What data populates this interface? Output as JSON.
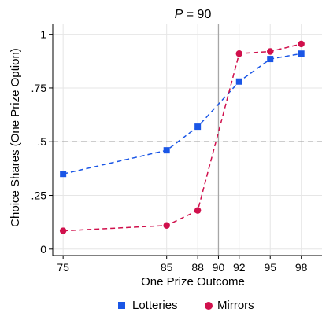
{
  "chart_data": {
    "type": "line",
    "title_var": "P",
    "title_rest": " = 90",
    "xlabel": "One Prize Outcome",
    "ylabel": "Choice Shares (One Prize Option)",
    "x": [
      75,
      85,
      88,
      92,
      95,
      98
    ],
    "x_ticks": [
      75,
      85,
      88,
      90,
      92,
      95,
      98
    ],
    "x_tick_labels": [
      "75",
      "85",
      "88",
      "90",
      "92",
      "95",
      "98"
    ],
    "y_ticks": [
      0,
      0.25,
      0.5,
      0.75,
      1
    ],
    "y_tick_labels": [
      "0",
      ".25",
      ".5",
      ".75",
      "1"
    ],
    "xlim": [
      74,
      100
    ],
    "ylim": [
      -0.03,
      1.05
    ],
    "reference_lines": {
      "vertical_x": 90,
      "horizontal_y": 0.5
    },
    "grid": true,
    "legend_position": "bottom",
    "series": [
      {
        "name": "Lotteries",
        "marker": "square",
        "color": "#1a56e6",
        "values": [
          0.35,
          0.46,
          0.57,
          0.78,
          0.885,
          0.91
        ]
      },
      {
        "name": "Mirrors",
        "marker": "circle",
        "color": "#d0104c",
        "values": [
          0.085,
          0.11,
          0.18,
          0.91,
          0.92,
          0.955
        ]
      }
    ],
    "colors": {
      "grid": "#e6e6e6",
      "axis": "#000000",
      "reference_vertical": "#a6a6a6",
      "reference_horizontal": "#7f7f7f"
    }
  }
}
